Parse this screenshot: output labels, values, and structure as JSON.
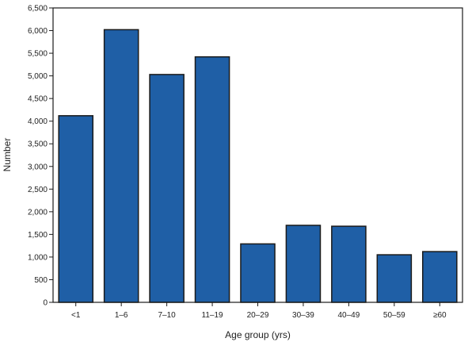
{
  "chart_data": {
    "type": "bar",
    "categories": [
      "<1",
      "1–6",
      "7–10",
      "11–19",
      "20–29",
      "30–39",
      "40–49",
      "50–59",
      "≥60"
    ],
    "values": [
      4120,
      6020,
      5030,
      5420,
      1290,
      1700,
      1680,
      1050,
      1120
    ],
    "xlabel": "Age group (yrs)",
    "ylabel": "Number",
    "ylim": [
      0,
      6500
    ],
    "yticks": [
      0,
      500,
      1000,
      1500,
      2000,
      2500,
      3000,
      3500,
      4000,
      4500,
      5000,
      5500,
      6000,
      6500
    ],
    "ytick_labels": [
      "0",
      "500",
      "1,000",
      "1,500",
      "2,000",
      "2,500",
      "3,000",
      "3,500",
      "4,000",
      "4,500",
      "5,000",
      "5,500",
      "6,000",
      "6,500"
    ],
    "grid": false,
    "bar_color": "#1f5fa6"
  }
}
